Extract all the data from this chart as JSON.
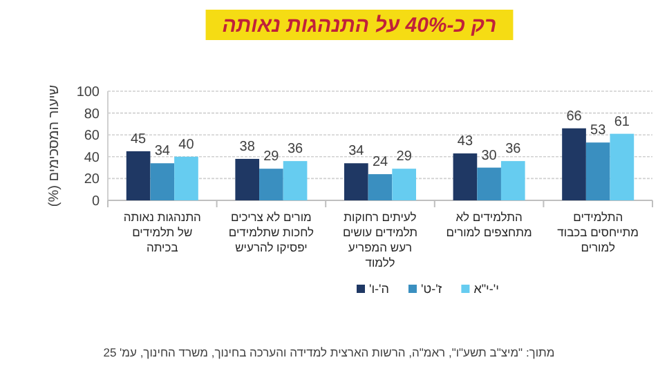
{
  "chart_data": {
    "type": "bar",
    "title": "רק כ-40% על התנהגות נאותה",
    "ylabel": "שיעור המסכימים (%)",
    "categories": [
      "התנהגות נאותה של תלמידים בכיתה",
      "מורים לא צריכים לחכות שתלמידים יפסיקו להרעיש",
      "לעיתים רחוקות תלמידים עושים רעש המפריע ללמוד",
      "התלמידים לא מתחצפים למורים",
      "התלמידים מתייחסים בכבוד למורים"
    ],
    "series": [
      {
        "name": "ה'-ו'",
        "color": "#1f3864",
        "values": [
          45,
          38,
          34,
          43,
          66
        ]
      },
      {
        "name": "ז'-ט'",
        "color": "#3a8fc0",
        "values": [
          34,
          29,
          24,
          30,
          53
        ]
      },
      {
        "name": "י'-י\"א",
        "color": "#66ccf0",
        "values": [
          40,
          36,
          29,
          36,
          61
        ]
      }
    ],
    "ylim": [
      0,
      100
    ],
    "yticks": [
      0,
      20,
      40,
      60,
      80,
      100
    ],
    "grid": "y",
    "data_labels": true,
    "legend": "bottom",
    "annotations": [
      "מתוך: \"מיצ\"ב תשע\"ו\", ראמ\"ה, הרשות הארצית למדידה והערכה בחינוך, משרד החינוך, עמ' 25"
    ]
  }
}
